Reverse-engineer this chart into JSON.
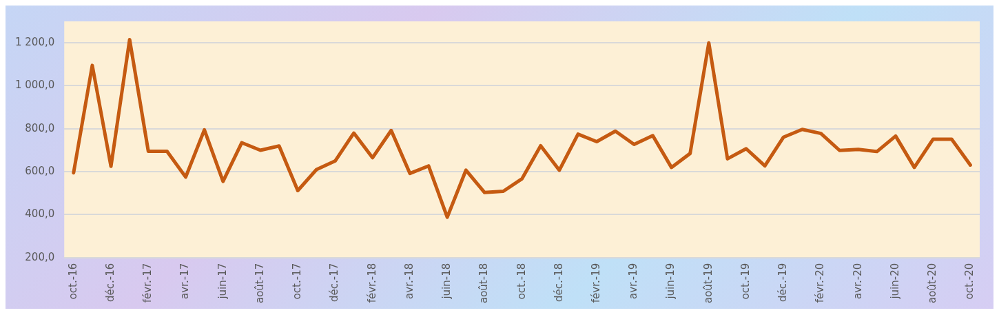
{
  "chart_data": {
    "type": "line",
    "categories": [
      "oct.-16",
      null,
      "déc.-16",
      null,
      "févr.-17",
      null,
      "avr.-17",
      null,
      "juin-17",
      null,
      "août-17",
      null,
      "oct.-17",
      null,
      "déc.-17",
      null,
      "févr.-18",
      null,
      "avr.-18",
      null,
      "juin-18",
      null,
      "août-18",
      null,
      "oct.-18",
      null,
      "déc.-18",
      null,
      "févr.-19",
      null,
      "avr.-19",
      null,
      "juin-19",
      null,
      "août-19",
      null,
      "oct.-19",
      null,
      "déc.-19",
      null,
      "févr.-20",
      null,
      "avr.-20",
      null,
      "juin-20",
      null,
      "août-20",
      null,
      "oct.-20"
    ],
    "series": [
      {
        "color": "#c55a11",
        "values": [
          595,
          1095,
          625,
          1215,
          695,
          695,
          575,
          795,
          555,
          735,
          700,
          720,
          512,
          610,
          650,
          780,
          665,
          792,
          592,
          627,
          388,
          607,
          503,
          509,
          567,
          721,
          607,
          775,
          740,
          789,
          727,
          768,
          620,
          685,
          1200,
          660,
          707,
          627,
          761,
          797,
          778,
          699,
          704,
          694,
          766,
          620,
          751,
          751,
          631
        ]
      }
    ],
    "ylim": [
      200,
      1300
    ],
    "yticks": [
      {
        "value": 200,
        "label": "200,0"
      },
      {
        "value": 400,
        "label": "400,0"
      },
      {
        "value": 600,
        "label": "600,0"
      },
      {
        "value": 800,
        "label": "800,0"
      },
      {
        "value": 1000,
        "label": "1 000,0"
      },
      {
        "value": 1200,
        "label": "1 200,0"
      }
    ],
    "grid": "y",
    "legend": false,
    "marker": "none",
    "line_style": "solid"
  }
}
